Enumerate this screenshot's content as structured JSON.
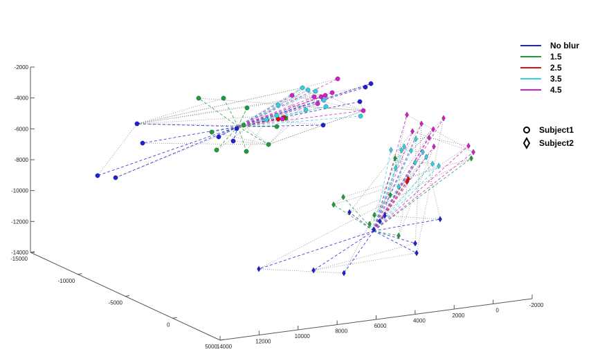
{
  "chart_data": {
    "type": "scatter",
    "projection": "3d",
    "grid": false,
    "legend_position": "top-right",
    "axes": {
      "vertical": {
        "ticks": [
          -2000,
          -4000,
          -6000,
          -8000,
          -10000,
          -12000,
          -14000
        ],
        "labels": [
          "-2000",
          "-4000",
          "-6000",
          "-8000",
          "-10000",
          "-12000",
          "-14000"
        ]
      },
      "depth": {
        "ticks": [
          -15000,
          -10000,
          -5000,
          0,
          5000
        ],
        "labels": [
          "-15000",
          "-10000",
          "-5000",
          "0",
          "5000"
        ]
      },
      "floor": {
        "ticks": [
          14000,
          12000,
          10000,
          8000,
          6000,
          4000,
          2000,
          0,
          -2000
        ],
        "labels": [
          "14000",
          "12000",
          "10000",
          "8000",
          "6000",
          "4000",
          "2000",
          "0",
          "-2000"
        ]
      }
    },
    "legend": {
      "series": [
        {
          "label": "No blur",
          "color": "#1f1fd6"
        },
        {
          "label": "1.5",
          "color": "#1a9e3a"
        },
        {
          "label": "2.5",
          "color": "#e01010"
        },
        {
          "label": "3.5",
          "color": "#30d0e0"
        },
        {
          "label": "4.5",
          "color": "#d020c8"
        }
      ],
      "markers": [
        {
          "label": "Subject1",
          "marker": "circle-icon"
        },
        {
          "label": "Subject2",
          "marker": "diamond-icon"
        }
      ]
    }
  }
}
